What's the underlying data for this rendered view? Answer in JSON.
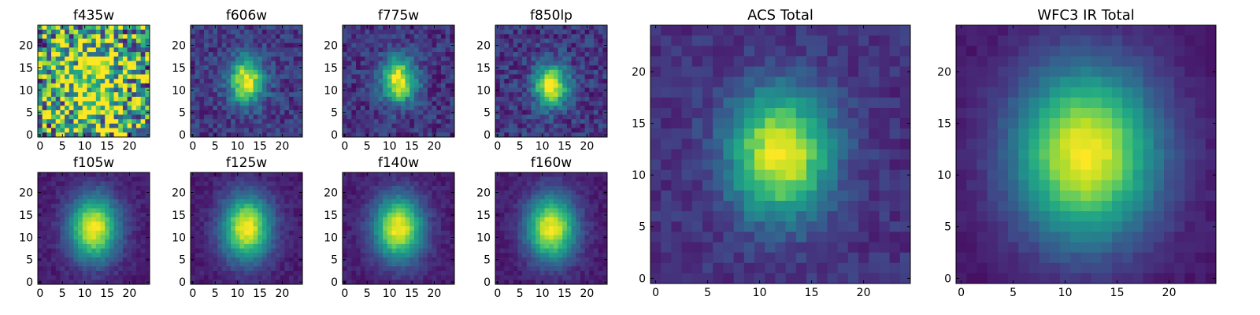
{
  "chart_data": [
    {
      "type": "heatmap",
      "title": "f435w",
      "x_ticks": [
        "0",
        "5",
        "10",
        "15",
        "20"
      ],
      "y_ticks": [
        "0",
        "5",
        "10",
        "15",
        "20"
      ],
      "xlim": [
        0,
        24
      ],
      "ylim": [
        0,
        24
      ],
      "grid": false,
      "colormap": "viridis",
      "peak": [
        12,
        12
      ],
      "sigma": [
        5.0,
        6.5
      ],
      "noise": 0.55,
      "background": 0.55
    },
    {
      "type": "heatmap",
      "title": "f606w",
      "x_ticks": [
        "0",
        "5",
        "10",
        "15",
        "20"
      ],
      "y_ticks": [
        "0",
        "5",
        "10",
        "15",
        "20"
      ],
      "xlim": [
        0,
        24
      ],
      "ylim": [
        0,
        24
      ],
      "grid": false,
      "colormap": "viridis",
      "peak": [
        12,
        12
      ],
      "sigma": [
        2.7,
        3.5
      ],
      "noise": 0.12,
      "background": 0.17
    },
    {
      "type": "heatmap",
      "title": "f775w",
      "x_ticks": [
        "0",
        "5",
        "10",
        "15",
        "20"
      ],
      "y_ticks": [
        "0",
        "5",
        "10",
        "15",
        "20"
      ],
      "xlim": [
        0,
        24
      ],
      "ylim": [
        0,
        24
      ],
      "grid": false,
      "colormap": "viridis",
      "peak": [
        12,
        12
      ],
      "sigma": [
        2.7,
        3.5
      ],
      "noise": 0.12,
      "background": 0.15
    },
    {
      "type": "heatmap",
      "title": "f850lp",
      "x_ticks": [
        "0",
        "5",
        "10",
        "15",
        "20"
      ],
      "y_ticks": [
        "0",
        "5",
        "10",
        "15",
        "20"
      ],
      "xlim": [
        0,
        24
      ],
      "ylim": [
        0,
        24
      ],
      "grid": false,
      "colormap": "viridis",
      "peak": [
        12,
        11
      ],
      "sigma": [
        2.6,
        3.3
      ],
      "noise": 0.13,
      "background": 0.16
    },
    {
      "type": "heatmap",
      "title": "ACS Total",
      "x_ticks": [
        "0",
        "5",
        "10",
        "15",
        "20"
      ],
      "y_ticks": [
        "0",
        "5",
        "10",
        "15",
        "20"
      ],
      "xlim": [
        0,
        24
      ],
      "ylim": [
        0,
        24
      ],
      "grid": false,
      "colormap": "viridis",
      "peak": [
        12,
        12
      ],
      "sigma": [
        3.4,
        4.2
      ],
      "noise": 0.07,
      "background": 0.14
    },
    {
      "type": "heatmap",
      "title": "WFC3 IR Total",
      "x_ticks": [
        "0",
        "5",
        "10",
        "15",
        "20"
      ],
      "y_ticks": [
        "0",
        "5",
        "10",
        "15",
        "20"
      ],
      "xlim": [
        0,
        24
      ],
      "ylim": [
        0,
        24
      ],
      "grid": false,
      "colormap": "viridis",
      "peak": [
        12,
        12
      ],
      "sigma": [
        4.8,
        5.8
      ],
      "noise": 0.03,
      "background": 0.06
    },
    {
      "type": "heatmap",
      "title": "f105w",
      "x_ticks": [
        "0",
        "5",
        "10",
        "15",
        "20"
      ],
      "y_ticks": [
        "0",
        "5",
        "10",
        "15",
        "20"
      ],
      "xlim": [
        0,
        24
      ],
      "ylim": [
        0,
        24
      ],
      "grid": false,
      "colormap": "viridis",
      "peak": [
        12,
        12
      ],
      "sigma": [
        3.8,
        5.0
      ],
      "noise": 0.05,
      "background": 0.08
    },
    {
      "type": "heatmap",
      "title": "f125w",
      "x_ticks": [
        "0",
        "5",
        "10",
        "15",
        "20"
      ],
      "y_ticks": [
        "0",
        "5",
        "10",
        "15",
        "20"
      ],
      "xlim": [
        0,
        24
      ],
      "ylim": [
        0,
        24
      ],
      "grid": false,
      "colormap": "viridis",
      "peak": [
        12,
        12
      ],
      "sigma": [
        3.8,
        5.0
      ],
      "noise": 0.05,
      "background": 0.08
    },
    {
      "type": "heatmap",
      "title": "f140w",
      "x_ticks": [
        "0",
        "5",
        "10",
        "15",
        "20"
      ],
      "y_ticks": [
        "0",
        "5",
        "10",
        "15",
        "20"
      ],
      "xlim": [
        0,
        24
      ],
      "ylim": [
        0,
        24
      ],
      "grid": false,
      "colormap": "viridis",
      "peak": [
        12,
        12
      ],
      "sigma": [
        3.8,
        5.0
      ],
      "noise": 0.05,
      "background": 0.08
    },
    {
      "type": "heatmap",
      "title": "f160w",
      "x_ticks": [
        "0",
        "5",
        "10",
        "15",
        "20"
      ],
      "y_ticks": [
        "0",
        "5",
        "10",
        "15",
        "20"
      ],
      "xlim": [
        0,
        24
      ],
      "ylim": [
        0,
        24
      ],
      "grid": false,
      "colormap": "viridis",
      "peak": [
        12,
        12
      ],
      "sigma": [
        3.8,
        5.0
      ],
      "noise": 0.05,
      "background": 0.08
    }
  ]
}
